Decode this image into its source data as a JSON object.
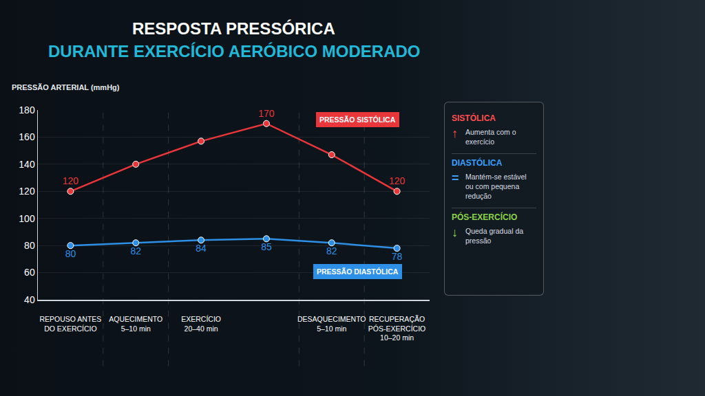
{
  "chart_data": {
    "type": "line",
    "title": "RESPOSTA PRESSÓRICA",
    "subtitle": "DURANTE EXERCÍCIO AERÓBICO MODERADO",
    "y_label": "PRESSÃO ARTERIAL (mmHg)",
    "categories": [
      "REPOUSO ANTES DO EXERCÍCIO",
      "AQUECIMENTO 5–10 min",
      "EXERCÍCIO 20–40 min",
      null,
      "DESAQUECIMENTO 5–10 min",
      "RECUPERAÇÃO PÓS-EXERCÍCIO 10–20 min"
    ],
    "series": [
      {
        "name": "PRESSÃO SISTÓLICA",
        "color": "#e8363a",
        "values": [
          120,
          140,
          157,
          170,
          147,
          120
        ],
        "value_labels": [
          "120",
          null,
          null,
          "170",
          null,
          "120"
        ],
        "marker": "circle"
      },
      {
        "name": "PRESSÃO DIASTÓLICA",
        "color": "#2e8fe6",
        "values": [
          80,
          82,
          84,
          85,
          82,
          78
        ],
        "marker": "circle"
      }
    ],
    "ylim": [
      40,
      180
    ],
    "yticks": [
      40,
      60,
      80,
      100,
      120,
      140,
      160,
      180
    ],
    "grid": true,
    "data_labels": true,
    "annotations": [
      {
        "title": "SISTÓLICA",
        "symbol": "↑",
        "text": "Aumenta com o exercício",
        "color": "#ff4d4d"
      },
      {
        "title": "DIASTÓLICA",
        "symbol": "=",
        "text": "Mantém-se estável ou com pequena redução",
        "color": "#3aa0ff"
      },
      {
        "title": "PÓS-EXERCÍCIO",
        "symbol": "↓",
        "text": "Queda gradual da pressão",
        "color": "#8bd44a"
      }
    ]
  }
}
